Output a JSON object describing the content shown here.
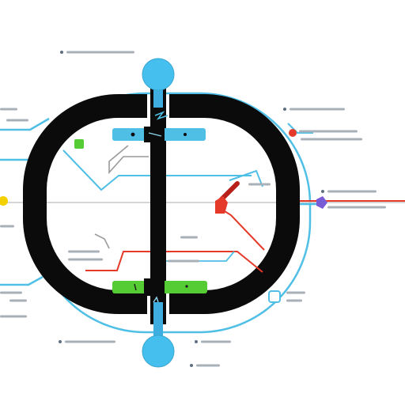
{
  "colors": {
    "background": "#ffffff",
    "ring": "#0b0b0b",
    "cyan": "#4fbfe6",
    "cyan_light": "#8fd6ef",
    "node_fill": "#45c0ee",
    "red": "#e53a2a",
    "green": "#55cc33",
    "purple": "#7a5bd6",
    "gray_line": "#b8b8b8",
    "placeholder": "#a8b0b8",
    "dot": "#5f6f80",
    "yellow": "#f5d000",
    "dark_red": "#b8201a"
  },
  "diagram": {
    "nodes": [
      {
        "id": "top-node",
        "color": "cyan"
      },
      {
        "id": "bottom-node",
        "color": "cyan"
      }
    ],
    "bars": [
      {
        "id": "upper-bar",
        "color": "cyan"
      },
      {
        "id": "lower-bar",
        "color": "green"
      }
    ],
    "markers": [
      {
        "id": "marker-red-right",
        "color": "red"
      },
      {
        "id": "marker-purple-right",
        "color": "purple"
      },
      {
        "id": "marker-yellow-left",
        "color": "yellow"
      },
      {
        "id": "marker-green-inner",
        "color": "green"
      },
      {
        "id": "marker-cyan-lower-right",
        "color": "cyan"
      }
    ],
    "connector_icons": [
      "network-icon",
      "link-icon"
    ]
  }
}
